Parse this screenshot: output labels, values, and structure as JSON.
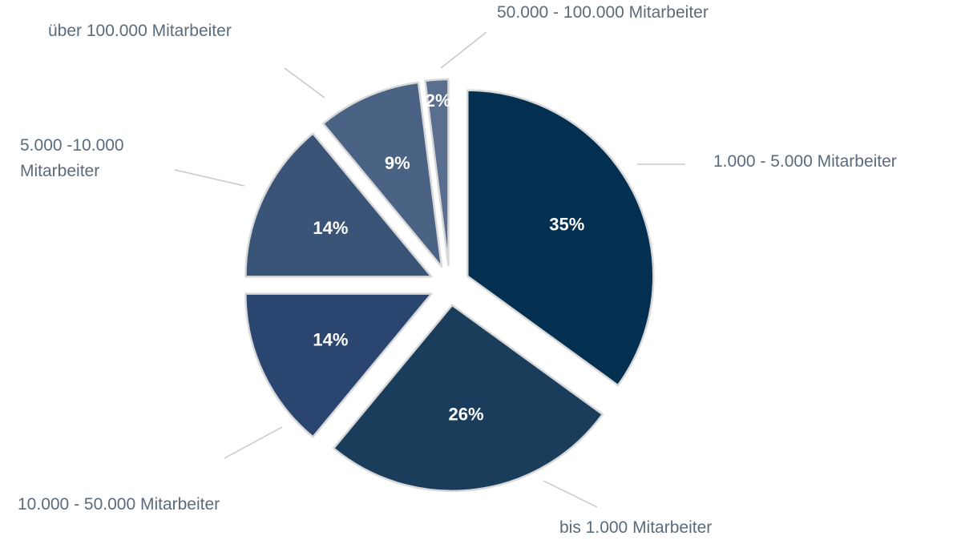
{
  "chart_data": {
    "type": "pie",
    "categories": [
      "1.000 - 5.000 Mitarbeiter",
      "bis 1.000 Mitarbeiter",
      "10.000 - 50.000 Mitarbeiter",
      "5.000 -10.000 Mitarbeiter",
      "über 100.000 Mitarbeiter",
      "50.000 - 100.000 Mitarbeiter"
    ],
    "values": [
      35,
      26,
      14,
      14,
      9,
      2
    ],
    "value_labels": [
      "35%",
      "26%",
      "14%",
      "14%",
      "9%",
      "2%"
    ],
    "colors": [
      "#033050",
      "#1b3d5c",
      "#2a4670",
      "#3a5478",
      "#4a6283",
      "#5a6f8f"
    ]
  }
}
